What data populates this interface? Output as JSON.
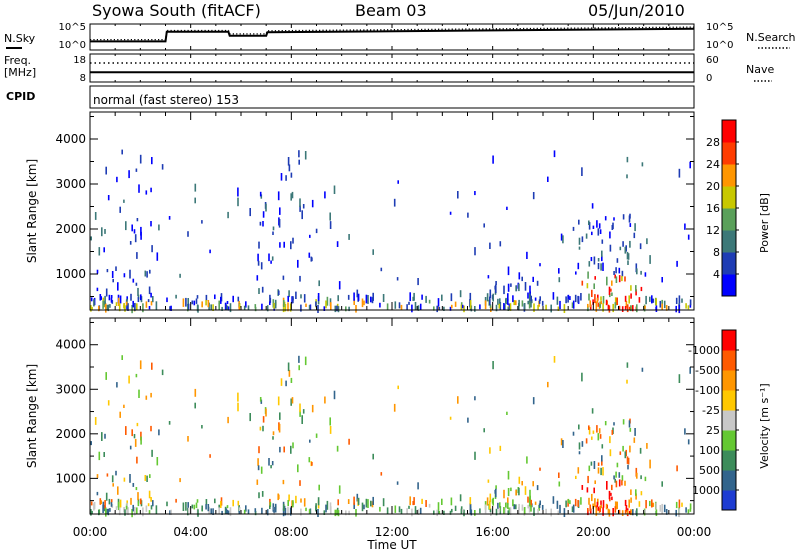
{
  "header": {
    "station": "Syowa South (fitACF)",
    "beam": "Beam 03",
    "date": "05/Jun/2010"
  },
  "chart_data": [
    {
      "type": "line",
      "panel": "noise",
      "left_label": "N.Sky",
      "right_label": "N.Search",
      "left_ticks": [
        "10^5",
        "10^0"
      ],
      "right_ticks": [
        "10^5",
        "10^0"
      ],
      "series": [
        {
          "style": "solid",
          "x": [
            0,
            3.0,
            3.05,
            5.5,
            5.55,
            7.0,
            7.05,
            24
          ],
          "y": [
            0.33,
            0.33,
            0.7,
            0.7,
            0.55,
            0.55,
            0.68,
            0.82
          ]
        },
        {
          "style": "dotted",
          "x": [
            0,
            3.0,
            3.05,
            5.5,
            5.55,
            7.0,
            7.05,
            24
          ],
          "y": [
            0.4,
            0.4,
            0.75,
            0.75,
            0.62,
            0.62,
            0.74,
            0.88
          ]
        }
      ]
    },
    {
      "type": "line",
      "panel": "freq-nave",
      "left_label": "Freq. [MHz]",
      "right_label": "Nave",
      "left_ticks": [
        "18",
        "8"
      ],
      "right_ticks": [
        "60",
        "0"
      ],
      "series": [
        {
          "style": "solid",
          "y": 11.5
        },
        {
          "style": "dotted",
          "y": 14.8
        }
      ]
    },
    {
      "type": "text",
      "panel": "cpid",
      "label": "CPID",
      "text": "normal (fast stereo) 153"
    },
    {
      "type": "heatmap",
      "panel": "power",
      "ylabel": "Slant Range [km]",
      "yticks": [
        1000,
        2000,
        3000,
        4000
      ],
      "ylim": [
        200,
        4600
      ],
      "colorbar_label": "Power [dB]",
      "colorbar_ticks": [
        "4",
        "8",
        "12",
        "16",
        "20",
        "24",
        "28"
      ],
      "colors": [
        "#0000ff",
        "#1e3cb4",
        "#3c7878",
        "#5aa05a",
        "#c8c800",
        "#ff9600",
        "#ff3c00",
        "#ff0000"
      ]
    },
    {
      "type": "heatmap",
      "panel": "velocity",
      "ylabel": "Slant Range [km]",
      "yticks": [
        1000,
        2000,
        3000,
        4000
      ],
      "ylim": [
        200,
        4600
      ],
      "xlabel": "Time UT",
      "xticks": [
        "00:00",
        "04:00",
        "08:00",
        "12:00",
        "16:00",
        "20:00",
        "00:00"
      ],
      "xlim": [
        0,
        24
      ],
      "colorbar_label": "Velocity [m s⁻¹]",
      "colorbar_ticks": [
        "1000",
        "500",
        "100",
        "25",
        "-25",
        "-100",
        "-500",
        "-1000"
      ],
      "colors": [
        "#1e3cd2",
        "#32648c",
        "#3c8c5a",
        "#64c832",
        "#c8c8c8",
        "#ffc800",
        "#ff9600",
        "#ff5a00",
        "#ff0000"
      ]
    }
  ]
}
